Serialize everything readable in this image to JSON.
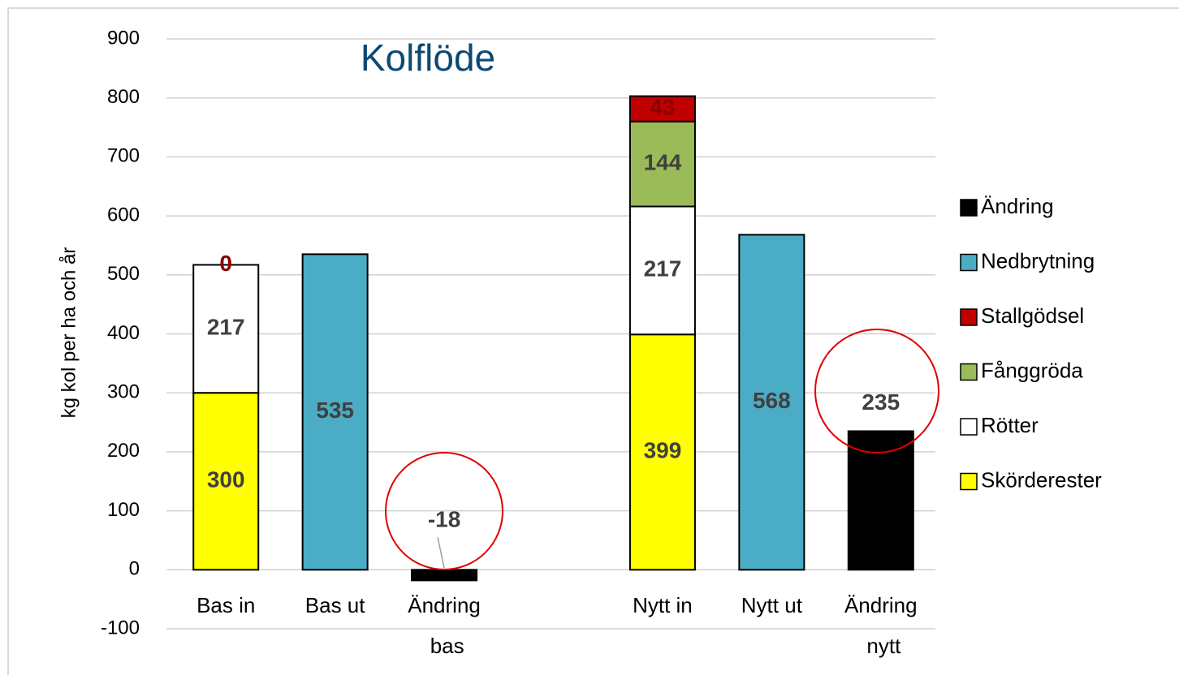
{
  "chart_data": {
    "type": "stacked_bar",
    "title": "Kolflöde",
    "y_label": "kg kol per ha och år",
    "categories": [
      "Bas in",
      "Bas ut",
      "Ändring bas",
      null,
      "Nytt in",
      "Nytt ut",
      "Ändring nytt"
    ],
    "series": [
      {
        "name": "Ändring",
        "color": "#000000",
        "values": [
          null,
          null,
          -18,
          null,
          null,
          null,
          235
        ]
      },
      {
        "name": "Nedbrytning",
        "color": "#4bacc6",
        "values": [
          null,
          535,
          null,
          null,
          null,
          568,
          null
        ]
      },
      {
        "name": "Stallgödsel",
        "color": "#c00000",
        "values": [
          0,
          null,
          null,
          null,
          43,
          null,
          null
        ]
      },
      {
        "name": "Fånggröda",
        "color": "#9bbb59",
        "values": [
          null,
          null,
          null,
          null,
          144,
          null,
          null
        ]
      },
      {
        "name": "Rötter",
        "color": "#ffffff",
        "values": [
          217,
          null,
          null,
          null,
          217,
          null,
          null
        ]
      },
      {
        "name": "Skörderester",
        "color": "#ffff00",
        "values": [
          300,
          null,
          null,
          null,
          399,
          null,
          null
        ]
      }
    ],
    "ylim": [
      -100,
      900
    ],
    "yticks": [
      -100,
      0,
      100,
      200,
      300,
      400,
      500,
      600,
      700,
      800,
      900
    ],
    "grid": true,
    "legend": "right"
  }
}
